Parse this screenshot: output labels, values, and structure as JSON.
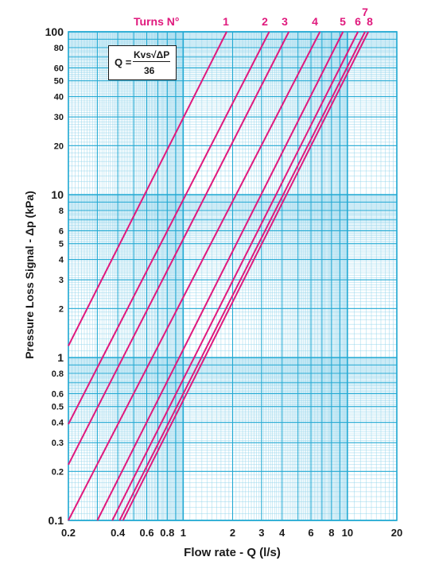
{
  "chart_data": {
    "type": "line",
    "x_scale": "log",
    "y_scale": "log",
    "xlim": [
      0.2,
      20
    ],
    "ylim": [
      0.1,
      100
    ],
    "xlabel": "Flow rate - Q (l/s)",
    "ylabel": "Pressure Loss Signal  - Δp (kPa)",
    "grid": true,
    "x_ticks": [
      {
        "value": 0.2,
        "label": "0.2"
      },
      {
        "value": 0.4,
        "label": "0.4"
      },
      {
        "value": 0.6,
        "label": "0.6"
      },
      {
        "value": 0.8,
        "label": "0.8"
      },
      {
        "value": 1,
        "label": "1"
      },
      {
        "value": 2,
        "label": "2"
      },
      {
        "value": 3,
        "label": "3"
      },
      {
        "value": 4,
        "label": "4"
      },
      {
        "value": 6,
        "label": "6"
      },
      {
        "value": 8,
        "label": "8"
      },
      {
        "value": 10,
        "label": "10"
      },
      {
        "value": 20,
        "label": "20"
      }
    ],
    "y_ticks": [
      {
        "value": 0.1,
        "label": "0.1"
      },
      {
        "value": 0.2,
        "label": "0.2"
      },
      {
        "value": 0.3,
        "label": "0.3"
      },
      {
        "value": 0.4,
        "label": "0.4"
      },
      {
        "value": 0.5,
        "label": "0.5"
      },
      {
        "value": 0.6,
        "label": "0.6"
      },
      {
        "value": 0.8,
        "label": "0.8"
      },
      {
        "value": 1,
        "label": "1"
      },
      {
        "value": 2,
        "label": "2"
      },
      {
        "value": 3,
        "label": "3"
      },
      {
        "value": 4,
        "label": "4"
      },
      {
        "value": 5,
        "label": "5"
      },
      {
        "value": 6,
        "label": "6"
      },
      {
        "value": 8,
        "label": "8"
      },
      {
        "value": 10,
        "label": "10"
      },
      {
        "value": 20,
        "label": "20"
      },
      {
        "value": 30,
        "label": "30"
      },
      {
        "value": 40,
        "label": "40"
      },
      {
        "value": 50,
        "label": "50"
      },
      {
        "value": 60,
        "label": "60"
      },
      {
        "value": 80,
        "label": "80"
      },
      {
        "value": 100,
        "label": "100"
      }
    ],
    "turns_heading": "Turns N°",
    "series": [
      {
        "name": "1",
        "x": [
          0.2,
          1.84
        ],
        "y": [
          1.18,
          100
        ]
      },
      {
        "name": "2",
        "x": [
          0.2,
          3.34
        ],
        "y": [
          0.39,
          100
        ]
      },
      {
        "name": "3",
        "x": [
          0.2,
          4.4
        ],
        "y": [
          0.22,
          100
        ]
      },
      {
        "name": "4",
        "x": [
          0.2,
          6.8
        ],
        "y": [
          0.1,
          100
        ]
      },
      {
        "name": "5",
        "x": [
          0.3,
          9.4
        ],
        "y": [
          0.1,
          100
        ]
      },
      {
        "name": "6",
        "x": [
          0.37,
          11.6
        ],
        "y": [
          0.1,
          100
        ]
      },
      {
        "name": "7",
        "x": [
          0.41,
          12.8
        ],
        "y": [
          0.1,
          100
        ]
      },
      {
        "name": "8",
        "x": [
          0.43,
          13.4
        ],
        "y": [
          0.1,
          100
        ]
      }
    ],
    "formula": {
      "lhs": "Q",
      "equals": "=",
      "numerator": "Kvs√ΔP",
      "denominator": "36"
    },
    "colors": {
      "grid_major": "#22a9d3",
      "grid_minor": "#8fd3ea",
      "curves": "#e0197d",
      "text": "#1a1a1a"
    }
  }
}
